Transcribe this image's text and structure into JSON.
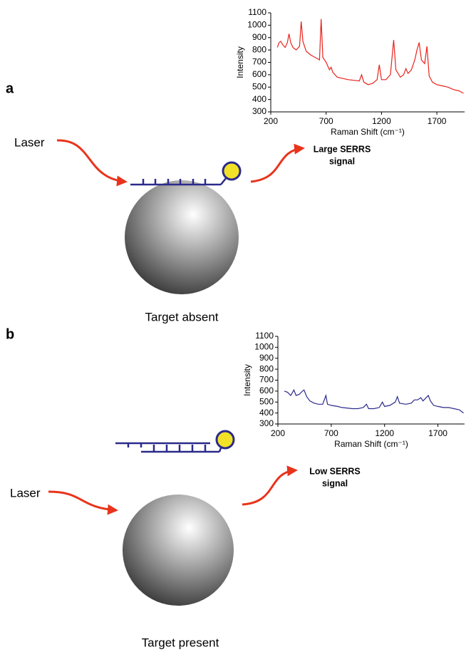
{
  "chart_data": [
    {
      "type": "line",
      "y_label": "Intensity",
      "x_label": "Raman Shift (cm⁻¹)",
      "xlim": [
        200,
        1950
      ],
      "ylim": [
        300,
        1100
      ],
      "xticks": [
        200,
        700,
        1200,
        1700
      ],
      "yticks": [
        300,
        400,
        500,
        600,
        700,
        800,
        900,
        1000,
        1100
      ],
      "color": "#e8231c",
      "x": [
        260,
        275,
        290,
        310,
        330,
        350,
        365,
        380,
        400,
        430,
        460,
        475,
        490,
        520,
        560,
        600,
        640,
        655,
        670,
        700,
        730,
        745,
        760,
        800,
        850,
        900,
        950,
        1000,
        1020,
        1040,
        1080,
        1120,
        1160,
        1180,
        1200,
        1240,
        1280,
        1310,
        1330,
        1370,
        1400,
        1420,
        1440,
        1470,
        1500,
        1520,
        1540,
        1560,
        1590,
        1610,
        1630,
        1660,
        1700,
        1750,
        1800,
        1850,
        1900,
        1940
      ],
      "values": [
        820,
        860,
        870,
        840,
        820,
        860,
        930,
        860,
        820,
        800,
        830,
        1030,
        870,
        790,
        760,
        740,
        720,
        1050,
        740,
        700,
        640,
        660,
        620,
        580,
        570,
        560,
        555,
        550,
        600,
        540,
        520,
        530,
        560,
        680,
        560,
        560,
        600,
        880,
        640,
        580,
        600,
        650,
        610,
        640,
        720,
        800,
        860,
        720,
        690,
        830,
        590,
        540,
        520,
        510,
        500,
        480,
        470,
        450
      ]
    },
    {
      "type": "line",
      "y_label": "Intensity",
      "x_label": "Raman Shift (cm⁻¹)",
      "xlim": [
        200,
        1950
      ],
      "ylim": [
        300,
        1100
      ],
      "xticks": [
        200,
        700,
        1200,
        1700
      ],
      "yticks": [
        300,
        400,
        500,
        600,
        700,
        800,
        900,
        1000,
        1100
      ],
      "color": "#2b2a8a",
      "x": [
        260,
        290,
        320,
        350,
        370,
        400,
        430,
        445,
        470,
        500,
        540,
        580,
        620,
        650,
        665,
        700,
        760,
        800,
        900,
        950,
        1000,
        1030,
        1050,
        1100,
        1150,
        1180,
        1200,
        1250,
        1300,
        1320,
        1340,
        1400,
        1450,
        1480,
        1510,
        1540,
        1560,
        1590,
        1610,
        1630,
        1660,
        1700,
        1750,
        1800,
        1850,
        1900,
        1940
      ],
      "values": [
        600,
        590,
        560,
        610,
        560,
        570,
        600,
        610,
        550,
        510,
        490,
        480,
        480,
        560,
        480,
        470,
        460,
        450,
        440,
        440,
        450,
        480,
        440,
        440,
        450,
        500,
        460,
        470,
        500,
        550,
        490,
        480,
        490,
        520,
        520,
        540,
        510,
        540,
        560,
        510,
        470,
        460,
        450,
        450,
        440,
        430,
        400
      ]
    }
  ],
  "panels": [
    {
      "label": "a",
      "laser": "Laser",
      "signal": [
        "Large SERRS",
        "signal"
      ],
      "caption": "Target absent"
    },
    {
      "label": "b",
      "laser": "Laser",
      "signal": [
        "Low SERRS",
        "signal"
      ],
      "caption": "Target present"
    }
  ]
}
